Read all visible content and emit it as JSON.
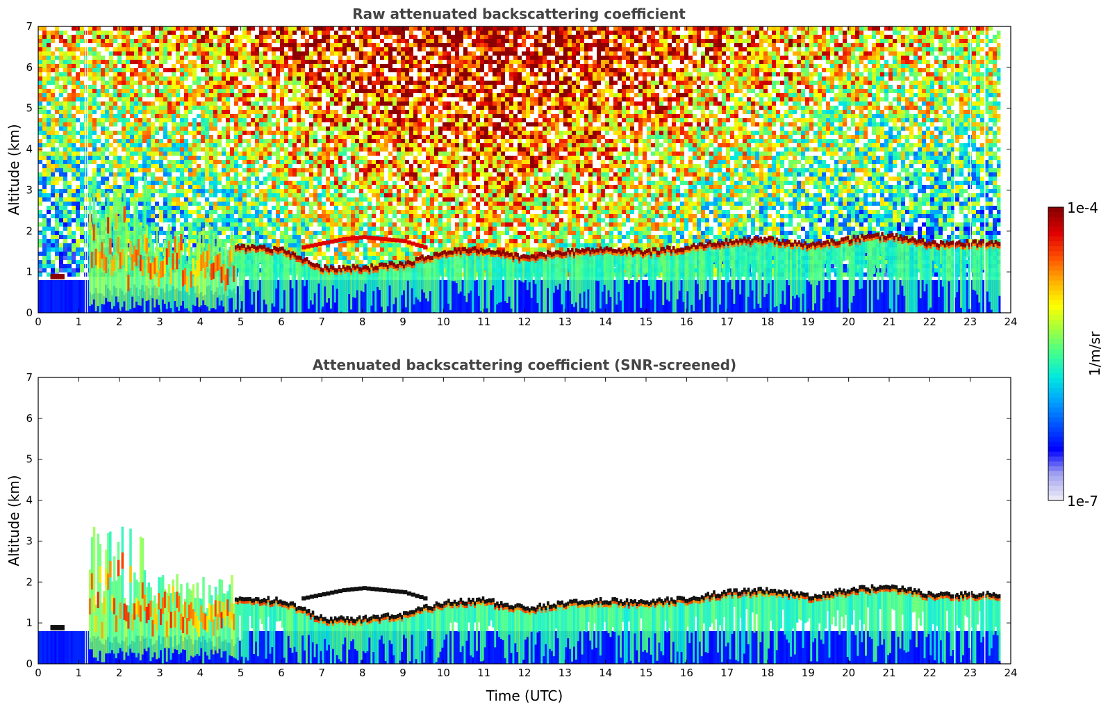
{
  "colors": {
    "colormap": [
      "#e8e8f6",
      "#a0a0f0",
      "#0000ff",
      "#0050ff",
      "#00a0ff",
      "#00e8e0",
      "#40ff90",
      "#a0ff40",
      "#ffff00",
      "#ffb000",
      "#ff5000",
      "#e00000",
      "#8b0000"
    ],
    "surface_blue": "#1e3cff",
    "screened_black": "#111111"
  },
  "chart_data": [
    {
      "type": "heatmap",
      "title": "Raw attenuated backscattering coefficient",
      "xlabel": "",
      "ylabel": "Altitude (km)",
      "xlim": [
        0,
        24
      ],
      "ylim": [
        0,
        7
      ],
      "x_ticks": [
        "0",
        "1",
        "2",
        "3",
        "4",
        "5",
        "6",
        "7",
        "8",
        "9",
        "10",
        "11",
        "12",
        "13",
        "14",
        "15",
        "16",
        "17",
        "18",
        "19",
        "20",
        "21",
        "22",
        "23",
        "24"
      ],
      "y_ticks": [
        "0",
        "1",
        "2",
        "3",
        "4",
        "5",
        "6",
        "7"
      ],
      "data_end_time": 23.75,
      "cloud_layer_top_km": {
        "time": [
          4.7,
          5,
          6,
          7,
          8,
          9,
          10,
          11,
          12,
          13,
          14,
          15,
          16,
          17,
          18,
          19,
          20,
          21,
          22,
          23,
          23.75
        ],
        "altitude": [
          1.6,
          1.6,
          1.55,
          1.1,
          1.1,
          1.2,
          1.5,
          1.55,
          1.35,
          1.5,
          1.55,
          1.5,
          1.6,
          1.75,
          1.8,
          1.65,
          1.8,
          1.9,
          1.7,
          1.7,
          1.7
        ]
      },
      "upper_layer_km": {
        "time": [
          6.5,
          7,
          7.5,
          8,
          8.5,
          9,
          9.5
        ],
        "altitude": [
          1.6,
          1.7,
          1.8,
          1.85,
          1.8,
          1.75,
          1.6
        ]
      }
    },
    {
      "type": "heatmap",
      "title": "Attenuated backscattering coefficient (SNR-screened)",
      "xlabel": "Time (UTC)",
      "ylabel": "Altitude (km)",
      "xlim": [
        0,
        24
      ],
      "ylim": [
        0,
        7
      ],
      "x_ticks": [
        "0",
        "1",
        "2",
        "3",
        "4",
        "5",
        "6",
        "7",
        "8",
        "9",
        "10",
        "11",
        "12",
        "13",
        "14",
        "15",
        "16",
        "17",
        "18",
        "19",
        "20",
        "21",
        "22",
        "23",
        "24"
      ],
      "y_ticks": [
        "0",
        "1",
        "2",
        "3",
        "4",
        "5",
        "6",
        "7"
      ],
      "data_end_time": 23.75
    }
  ],
  "colorbar": {
    "label": "1/m/sr",
    "max_label": "1e-4",
    "min_label": "1e-7",
    "scale": "log",
    "range": [
      1e-07,
      0.0001
    ]
  }
}
